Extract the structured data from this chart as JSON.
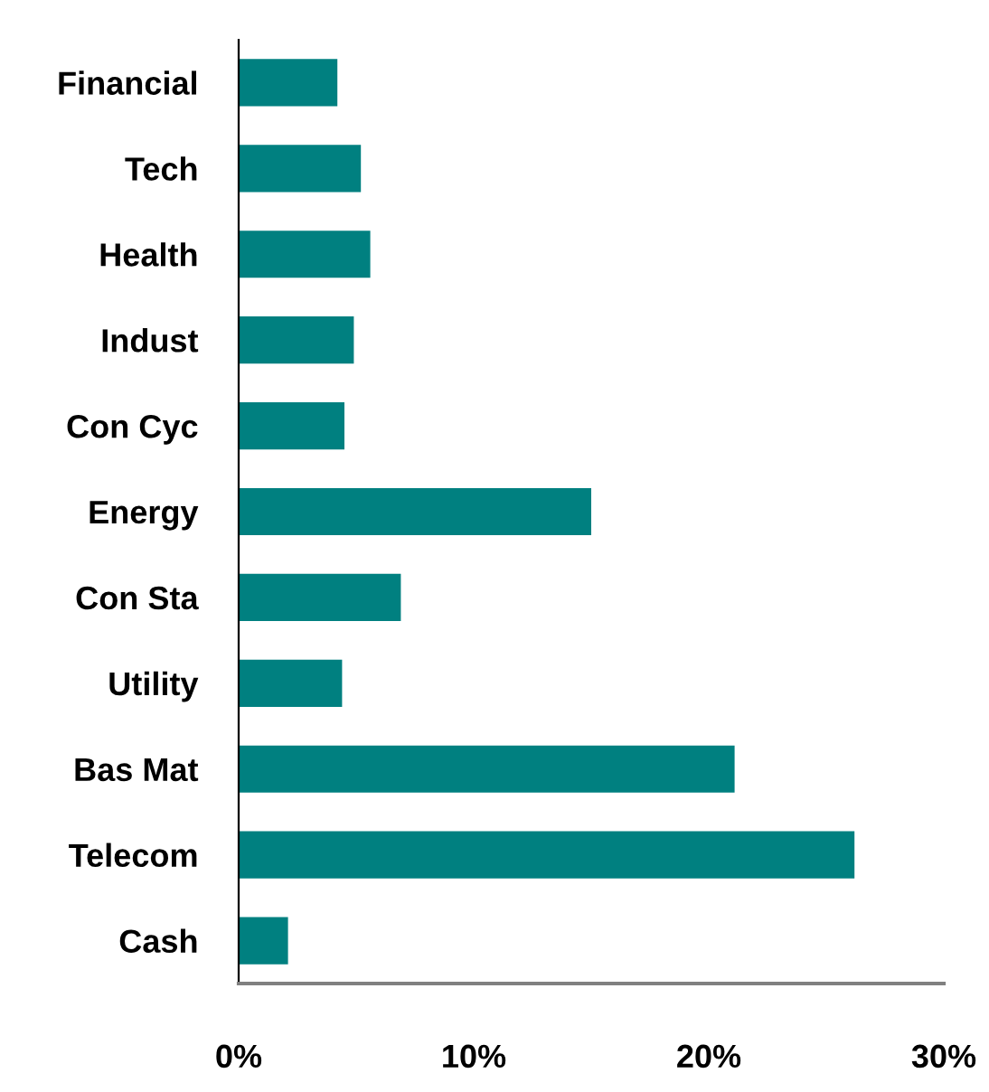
{
  "chart_data": {
    "type": "bar",
    "orientation": "horizontal",
    "categories": [
      "Financial",
      "Tech",
      "Health",
      "Indust",
      "Con Cyc",
      "Energy",
      "Con Sta",
      "Utility",
      "Bas Mat",
      "Telecom",
      "Cash"
    ],
    "values": [
      4.2,
      5.2,
      5.6,
      4.9,
      4.5,
      15.0,
      6.9,
      4.4,
      21.1,
      26.2,
      2.1
    ],
    "color": "#008080",
    "xlim": [
      0,
      30
    ],
    "xticks": [
      {
        "value": 0,
        "label": "0%"
      },
      {
        "value": 10,
        "label": "10%"
      },
      {
        "value": 20,
        "label": "20%"
      },
      {
        "value": 30,
        "label": "30%"
      }
    ],
    "grid": false,
    "legend": false
  }
}
